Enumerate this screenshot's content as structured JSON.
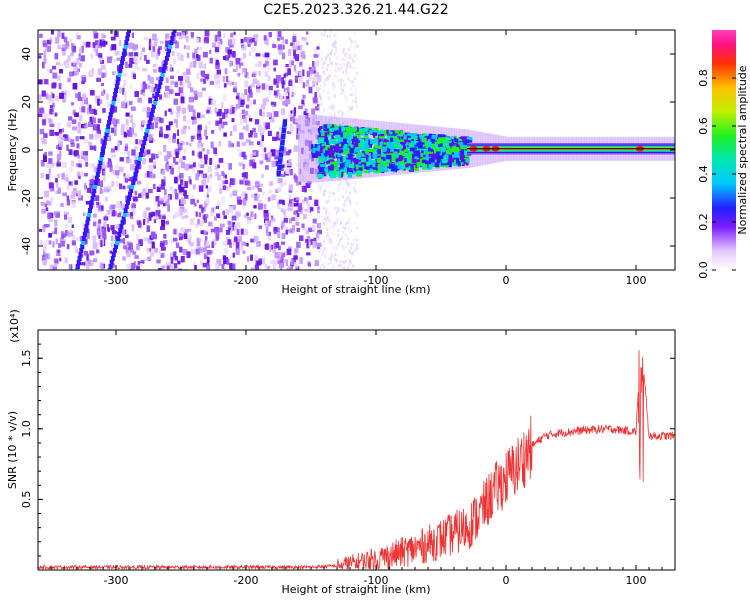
{
  "title": "C2E5.2023.326.21.44.G22",
  "colors": {
    "snr_line": "#ee3333",
    "axes": "#000000",
    "background": "#ffffff"
  },
  "chart_data": [
    {
      "type": "heatmap",
      "xlabel": "Height of straight line (km)",
      "ylabel": "Frequency (Hz)",
      "xlim": [
        -360,
        130
      ],
      "ylim": [
        -50,
        50
      ],
      "xticks": [
        -300,
        -200,
        -100,
        0,
        100
      ],
      "yticks": [
        -40,
        -20,
        0,
        20,
        40
      ],
      "colormap": "rainbow",
      "colorbar": {
        "label": "Normalized spectral amplitude",
        "range": [
          0.0,
          1.0
        ],
        "ticks": [
          0.0,
          0.2,
          0.4,
          0.6,
          0.8
        ]
      },
      "features": {
        "noise_region_x": [
          -360,
          -145
        ],
        "signal_center_freq": 0.5,
        "signal_spread_hz": [
          [
            -145,
            11
          ],
          [
            -30,
            5
          ],
          [
            0,
            2
          ],
          [
            130,
            2
          ]
        ],
        "streaks": [
          {
            "x": [
              -330,
              -290
            ],
            "y": [
              -50,
              50
            ]
          },
          {
            "x": [
              -305,
              -255
            ],
            "y": [
              -50,
              50
            ]
          },
          {
            "x": [
              -175,
              -170
            ],
            "y": [
              -10,
              12
            ]
          }
        ]
      }
    },
    {
      "type": "line",
      "xlabel": "Height of straight line (km)",
      "ylabel": "SNR (10 * v/v)",
      "y_multiplier": "(x10⁴)",
      "xlim": [
        -360,
        130
      ],
      "ylim": [
        0,
        1.7
      ],
      "xticks": [
        -300,
        -200,
        -100,
        0,
        100
      ],
      "yticks": [
        0.5,
        1.0,
        1.5
      ],
      "series": [
        {
          "x": [
            -360,
            -200,
            -150,
            -130,
            -110,
            -90,
            -70,
            -50,
            -30,
            -20,
            -10,
            0,
            10,
            20,
            30,
            40,
            50,
            60,
            80,
            100,
            104,
            110,
            130
          ],
          "y": [
            0.02,
            0.02,
            0.02,
            0.03,
            0.06,
            0.1,
            0.15,
            0.22,
            0.3,
            0.4,
            0.55,
            0.65,
            0.75,
            0.88,
            0.95,
            0.97,
            0.98,
            0.99,
            1.0,
            0.98,
            1.65,
            0.95,
            0.95
          ]
        }
      ]
    }
  ]
}
